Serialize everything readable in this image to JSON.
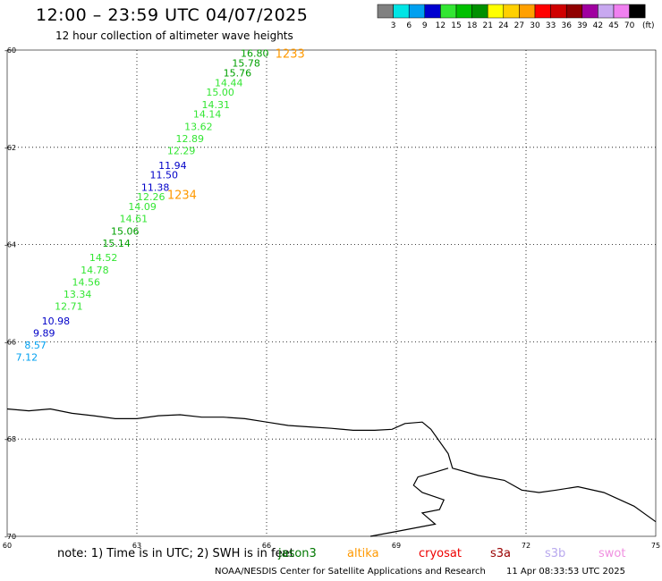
{
  "header": {
    "title": "12:00 – 23:59 UTC 04/07/2025",
    "subtitle": "12 hour collection of altimeter wave heights"
  },
  "colorbar": {
    "colors": [
      "#808080",
      "#00e5e5",
      "#00a0f0",
      "#0000d0",
      "#33e633",
      "#00c000",
      "#009000",
      "#ffff00",
      "#ffd000",
      "#ffa000",
      "#ff0000",
      "#d00000",
      "#900000",
      "#a000a0",
      "#c8a8f0",
      "#f080f0",
      "#000000"
    ],
    "labels": [
      "3",
      "6",
      "9",
      "12",
      "15",
      "18",
      "21",
      "24",
      "27",
      "30",
      "33",
      "36",
      "39",
      "42",
      "45",
      "70"
    ],
    "unit": "(ft)"
  },
  "axes": {
    "lat_ticks": [
      "-60",
      "-62",
      "-64",
      "-66",
      "-68",
      "-70"
    ],
    "lon_ticks": [
      "60",
      "63",
      "66",
      "69",
      "72",
      "75"
    ]
  },
  "map_data": {
    "lon_range": [
      60,
      75
    ],
    "lat_range": [
      -70,
      -60
    ],
    "pass_labels": [
      {
        "text": "1233",
        "lon": 66.2,
        "lat": -60.05,
        "color": "#ff9900"
      },
      {
        "text": "1234",
        "lon": 63.7,
        "lat": -62.95,
        "color": "#ff9900"
      }
    ],
    "observations": [
      {
        "value": "16.80",
        "lon": 65.4,
        "lat": -60.05,
        "color": "#00a000"
      },
      {
        "value": "15.78",
        "lon": 65.2,
        "lat": -60.25,
        "color": "#00a000"
      },
      {
        "value": "15.76",
        "lon": 65.0,
        "lat": -60.45,
        "color": "#00a000"
      },
      {
        "value": "14.44",
        "lon": 64.8,
        "lat": -60.65,
        "color": "#33e633"
      },
      {
        "value": "15.00",
        "lon": 64.6,
        "lat": -60.85,
        "color": "#33e633"
      },
      {
        "value": "14.31",
        "lon": 64.5,
        "lat": -61.1,
        "color": "#33e633"
      },
      {
        "value": "14.14",
        "lon": 64.3,
        "lat": -61.3,
        "color": "#33e633"
      },
      {
        "value": "13.62",
        "lon": 64.1,
        "lat": -61.55,
        "color": "#33e633"
      },
      {
        "value": "12.89",
        "lon": 63.9,
        "lat": -61.8,
        "color": "#33e633"
      },
      {
        "value": "12.29",
        "lon": 63.7,
        "lat": -62.05,
        "color": "#33e633"
      },
      {
        "value": "11.94",
        "lon": 63.5,
        "lat": -62.35,
        "color": "#0000c8"
      },
      {
        "value": "11.50",
        "lon": 63.3,
        "lat": -62.55,
        "color": "#0000c8"
      },
      {
        "value": "11.38",
        "lon": 63.1,
        "lat": -62.8,
        "color": "#0000c8"
      },
      {
        "value": "12.26",
        "lon": 63.0,
        "lat": -63.0,
        "color": "#33e633"
      },
      {
        "value": "14.09",
        "lon": 62.8,
        "lat": -63.2,
        "color": "#33e633"
      },
      {
        "value": "14.61",
        "lon": 62.6,
        "lat": -63.45,
        "color": "#33e633"
      },
      {
        "value": "15.06",
        "lon": 62.4,
        "lat": -63.7,
        "color": "#00a000"
      },
      {
        "value": "15.14",
        "lon": 62.2,
        "lat": -63.95,
        "color": "#00a000"
      },
      {
        "value": "14.52",
        "lon": 61.9,
        "lat": -64.25,
        "color": "#33e633"
      },
      {
        "value": "14.78",
        "lon": 61.7,
        "lat": -64.5,
        "color": "#33e633"
      },
      {
        "value": "14.56",
        "lon": 61.5,
        "lat": -64.75,
        "color": "#33e633"
      },
      {
        "value": "13.34",
        "lon": 61.3,
        "lat": -65.0,
        "color": "#33e633"
      },
      {
        "value": "12.71",
        "lon": 61.1,
        "lat": -65.25,
        "color": "#33e633"
      },
      {
        "value": "10.98",
        "lon": 60.8,
        "lat": -65.55,
        "color": "#0000c8"
      },
      {
        "value": "9.89",
        "lon": 60.6,
        "lat": -65.8,
        "color": "#0000c8"
      },
      {
        "value": "8.57",
        "lon": 60.4,
        "lat": -66.05,
        "color": "#00a0f0"
      },
      {
        "value": "7.12",
        "lon": 60.2,
        "lat": -66.3,
        "color": "#00a0f0"
      }
    ],
    "coastline": [
      [
        60.0,
        -67.38
      ],
      [
        60.5,
        -67.42
      ],
      [
        61.0,
        -67.38
      ],
      [
        61.5,
        -67.47
      ],
      [
        62.0,
        -67.52
      ],
      [
        62.5,
        -67.58
      ],
      [
        63.0,
        -67.58
      ],
      [
        63.5,
        -67.52
      ],
      [
        64.0,
        -67.5
      ],
      [
        64.5,
        -67.55
      ],
      [
        65.0,
        -67.55
      ],
      [
        65.5,
        -67.58
      ],
      [
        66.0,
        -67.65
      ],
      [
        66.5,
        -67.72
      ],
      [
        67.0,
        -67.75
      ],
      [
        67.5,
        -67.78
      ],
      [
        68.0,
        -67.82
      ],
      [
        68.5,
        -67.82
      ],
      [
        68.9,
        -67.8
      ],
      [
        69.2,
        -67.68
      ],
      [
        69.6,
        -67.65
      ],
      [
        69.8,
        -67.8
      ],
      [
        70.2,
        -68.3
      ],
      [
        70.3,
        -68.6
      ],
      [
        70.9,
        -68.75
      ],
      [
        71.5,
        -68.85
      ],
      [
        71.9,
        -69.05
      ],
      [
        72.3,
        -69.1
      ],
      [
        72.7,
        -69.05
      ],
      [
        73.2,
        -68.98
      ],
      [
        73.8,
        -69.1
      ],
      [
        74.5,
        -69.38
      ],
      [
        75.0,
        -69.7
      ]
    ],
    "inlet": [
      [
        70.2,
        -68.6
      ],
      [
        69.9,
        -68.68
      ],
      [
        69.5,
        -68.78
      ],
      [
        69.4,
        -68.95
      ],
      [
        69.6,
        -69.1
      ],
      [
        70.1,
        -69.25
      ],
      [
        70.0,
        -69.45
      ],
      [
        69.6,
        -69.52
      ],
      [
        69.9,
        -69.75
      ],
      [
        69.0,
        -69.9
      ],
      [
        68.4,
        -70.0
      ]
    ]
  },
  "footer": {
    "note": "note:  1) Time is in UTC; 2) SWH is in feet",
    "satellites": [
      {
        "name": "jason3",
        "color": "#007700"
      },
      {
        "name": "altika",
        "color": "#ff9900"
      },
      {
        "name": "cryosat",
        "color": "#ee0000"
      },
      {
        "name": "s3a",
        "color": "#990000"
      },
      {
        "name": "s3b",
        "color": "#b8a8ee"
      },
      {
        "name": "swot",
        "color": "#f090e0"
      }
    ],
    "credit": "NOAA/NESDIS Center for Satellite Applications and Research",
    "timestamp": "11 Apr 08:33:53 UTC 2025"
  }
}
